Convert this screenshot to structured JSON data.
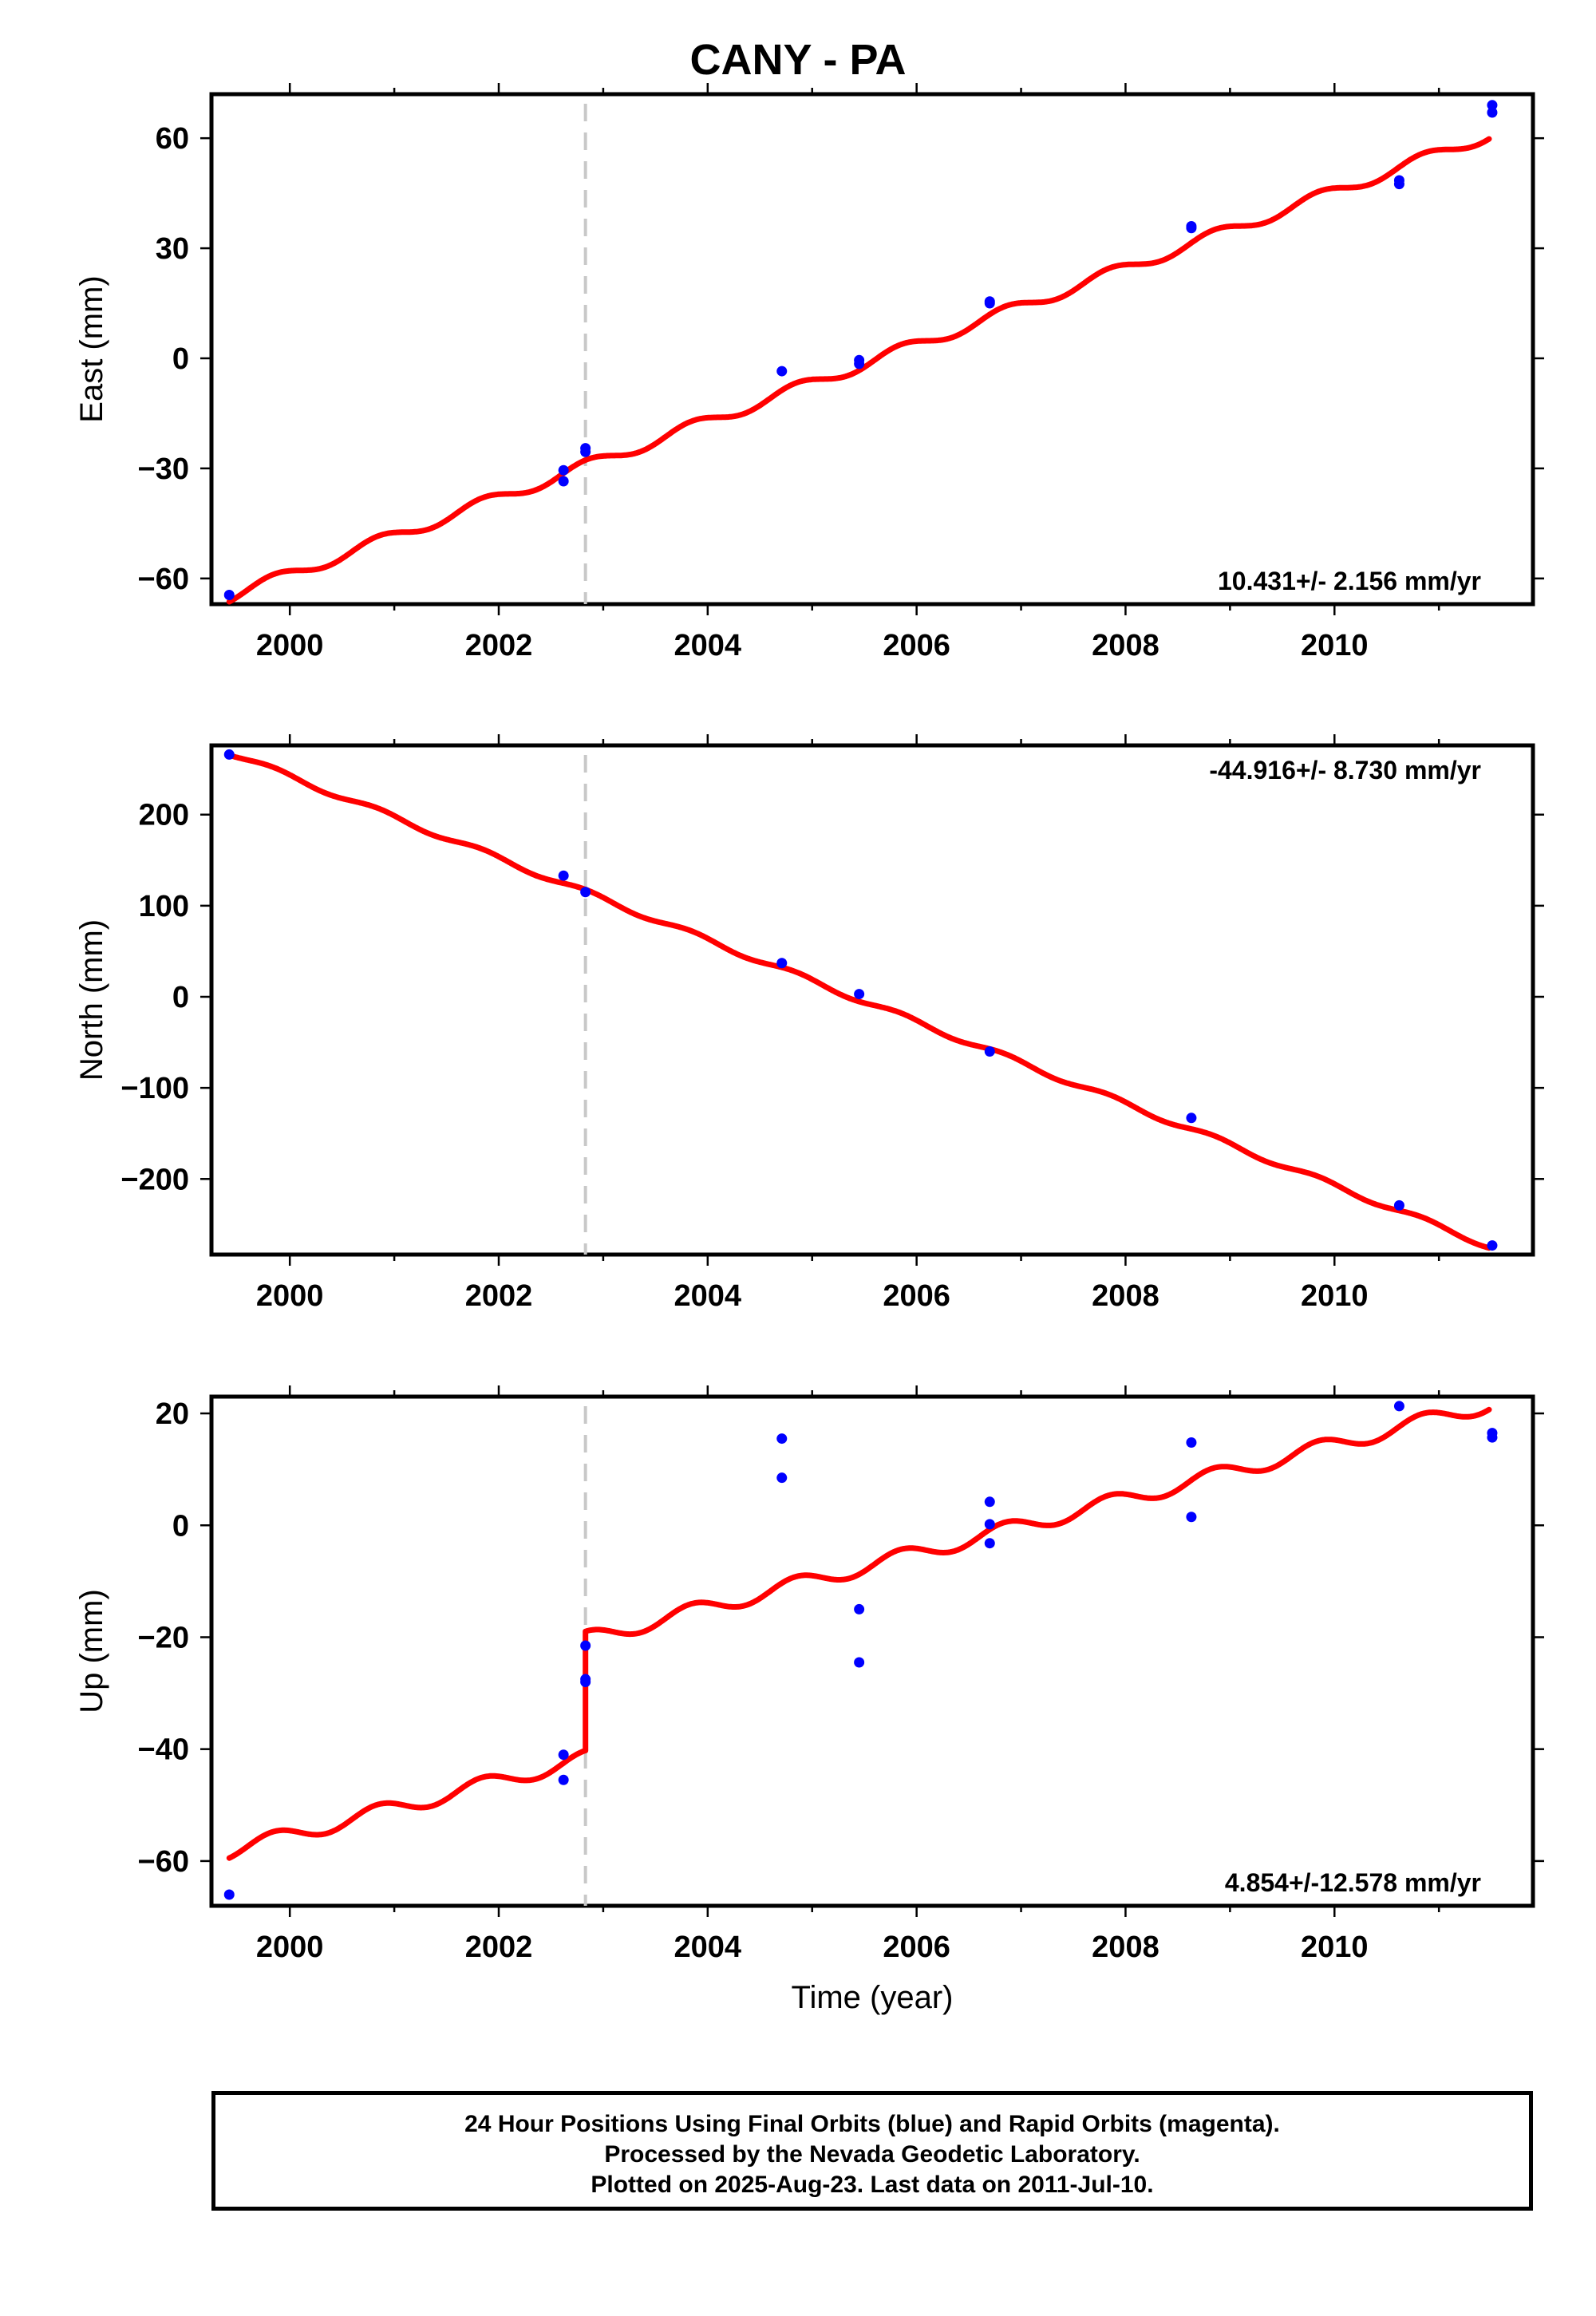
{
  "title": "CANY - PA",
  "chart_data": [
    {
      "type": "scatter",
      "name": "east",
      "ylabel": "East (mm)",
      "xlabel": "",
      "xlim": [
        1999.25,
        2011.9
      ],
      "ylim": [
        -67,
        72
      ],
      "yticks": [
        -60,
        -30,
        0,
        30,
        60
      ],
      "yticklabels": [
        "−60",
        "−30",
        "0",
        "30",
        "60"
      ],
      "xticks": [
        2000,
        2002,
        2004,
        2006,
        2008,
        2010
      ],
      "xticklabels": [
        "2000",
        "2002",
        "2004",
        "2006",
        "2008",
        "2010"
      ],
      "rate_label": "10.431+/- 2.156 mm/yr",
      "rate_position": "bottom-right",
      "break_epoch": 2002.83,
      "points": {
        "x": [
          1999.42,
          2002.62,
          2002.62,
          2002.83,
          2002.83,
          2004.71,
          2005.45,
          2005.45,
          2006.7,
          2006.7,
          2008.63,
          2008.63,
          2010.62,
          2010.62,
          2011.51,
          2011.51
        ],
        "y": [
          -64.5,
          -30.5,
          -33.5,
          -25.5,
          -24.5,
          -3.5,
          -0.5,
          -1.5,
          15.5,
          15.0,
          36.0,
          35.5,
          48.5,
          47.5,
          69.0,
          67.0
        ]
      },
      "model": {
        "x0": 1999.42,
        "x1": 2011.48,
        "y0": -64.9,
        "rate": 10.431,
        "amplitude": 1.6,
        "offset": 0,
        "phase": 0.6
      }
    },
    {
      "type": "scatter",
      "name": "north",
      "ylabel": "North (mm)",
      "xlabel": "",
      "xlim": [
        1999.25,
        2011.9
      ],
      "ylim": [
        -283,
        276
      ],
      "yticks": [
        -200,
        -100,
        0,
        100,
        200
      ],
      "yticklabels": [
        "−200",
        "−100",
        "0",
        "100",
        "200"
      ],
      "xticks": [
        2000,
        2002,
        2004,
        2006,
        2008,
        2010
      ],
      "xticklabels": [
        "2000",
        "2002",
        "2004",
        "2006",
        "2008",
        "2010"
      ],
      "rate_label": "-44.916+/- 8.730 mm/yr",
      "rate_position": "top-right",
      "break_epoch": 2002.83,
      "points": {
        "x": [
          1999.42,
          2002.62,
          2002.83,
          2004.71,
          2005.45,
          2006.7,
          2008.63,
          2010.62,
          2011.51
        ],
        "y": [
          266,
          133,
          115,
          37,
          3,
          -60,
          -133,
          -229,
          -273
        ]
      },
      "model": {
        "x0": 1999.42,
        "x1": 2011.48,
        "y0": 268,
        "rate": -44.916,
        "amplitude": 3,
        "offset": 0,
        "phase": 0.6
      }
    },
    {
      "type": "scatter",
      "name": "up",
      "ylabel": "Up (mm)",
      "xlabel": "Time (year)",
      "xlim": [
        1999.25,
        2011.9
      ],
      "ylim": [
        -68,
        23
      ],
      "yticks": [
        -60,
        -40,
        -20,
        0,
        20
      ],
      "yticklabels": [
        "−60",
        "−40",
        "−20",
        "0",
        "20"
      ],
      "xticks": [
        2000,
        2002,
        2004,
        2006,
        2008,
        2010
      ],
      "xticklabels": [
        "2000",
        "2002",
        "2004",
        "2006",
        "2008",
        "2010"
      ],
      "rate_label": "4.854+/-12.578 mm/yr",
      "rate_position": "bottom-right",
      "break_epoch": 2002.83,
      "points": {
        "x": [
          1999.42,
          2002.62,
          2002.62,
          2002.83,
          2002.83,
          2002.83,
          2004.71,
          2004.71,
          2005.45,
          2005.45,
          2006.7,
          2006.7,
          2006.7,
          2008.63,
          2008.63,
          2010.62,
          2011.51,
          2011.51
        ],
        "y": [
          -66,
          -41,
          -45.5,
          -21.5,
          -27.5,
          -28,
          15.5,
          8.5,
          -15,
          -24.5,
          4.2,
          0.2,
          -3.2,
          14.8,
          1.5,
          21.3,
          16.5,
          15.7
        ]
      },
      "model": {
        "x0": 1999.42,
        "x1": 2011.48,
        "y0": -58.2,
        "rate": 4.854,
        "amplitude": 1.4,
        "offset": 21.3,
        "phase": 0.6
      }
    }
  ],
  "footer": {
    "line1": "24 Hour Positions Using Final Orbits (blue) and Rapid Orbits (magenta).",
    "line2": "Processed by the Nevada Geodetic Laboratory.",
    "line3": "Plotted on 2025-Aug-23. Last data on 2011-Jul-10."
  },
  "colors": {
    "points": "#0000ff",
    "model": "#ff0000",
    "break": "#c8c8c8",
    "frame": "#000000"
  }
}
